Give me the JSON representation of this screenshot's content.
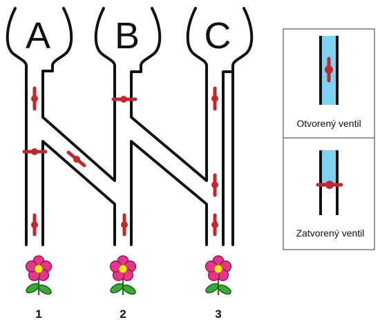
{
  "tanks": [
    {
      "label": "A"
    },
    {
      "label": "B"
    },
    {
      "label": "C"
    }
  ],
  "flowers": [
    {
      "label": "1"
    },
    {
      "label": "2"
    },
    {
      "label": "3"
    }
  ],
  "legend": {
    "open_label": "Otvorený ventil",
    "closed_label": "Zatvorený ventil"
  },
  "colors": {
    "valve": "#c1272d",
    "water": "#7fd1f2",
    "pipe": "#111111",
    "petal": "#e8348a",
    "flower_center": "#f7e31a",
    "leaf": "#3aa935"
  },
  "valves": [
    {
      "id": "a-top",
      "state": "open"
    },
    {
      "id": "a-mid",
      "state": "closed"
    },
    {
      "id": "a-bottom",
      "state": "open"
    },
    {
      "id": "ab-diagonal",
      "state": "open"
    },
    {
      "id": "b-top",
      "state": "closed"
    },
    {
      "id": "b-bottom",
      "state": "open"
    },
    {
      "id": "c-top",
      "state": "open"
    },
    {
      "id": "c-mid",
      "state": "open"
    },
    {
      "id": "c-bottom",
      "state": "open"
    }
  ]
}
